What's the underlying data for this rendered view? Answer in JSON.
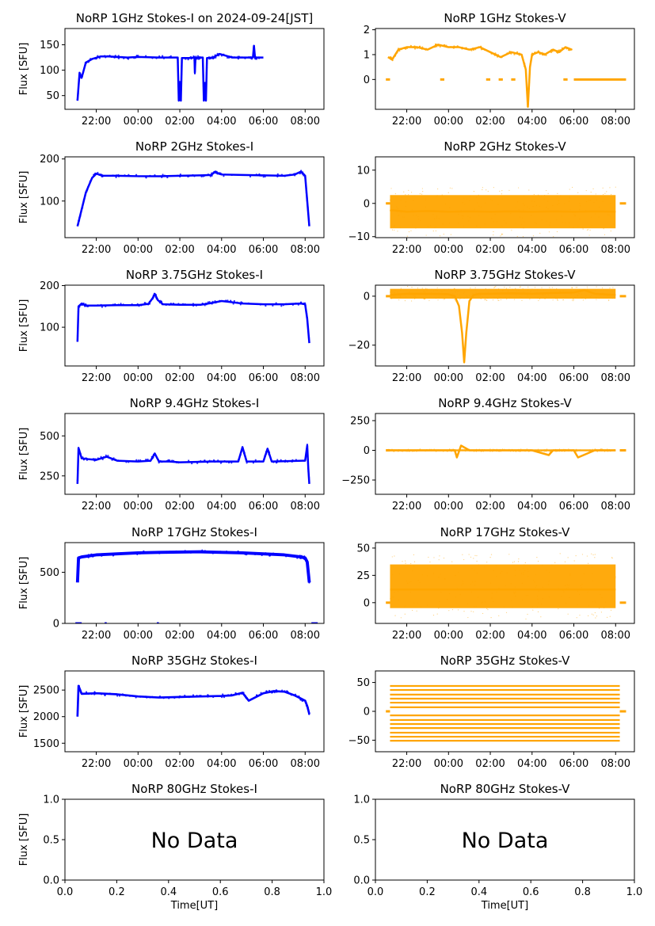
{
  "figure": {
    "title": "NoRP 1GHz Stokes-I on 2024-09-24[JST]",
    "ylabel": "Flux [SFU]",
    "xlabel": "Time[UT]",
    "no_data_text": "No Data",
    "time_ticks": [
      "22:00",
      "00:00",
      "02:00",
      "04:00",
      "06:00",
      "08:00"
    ],
    "colors": {
      "stokes_i": "#0000ff",
      "stokes_v": "#ffa500"
    }
  },
  "chart_data": [
    {
      "type": "scatter",
      "title": "NoRP 1GHz Stokes-I on 2024-09-24[JST]",
      "ylabel": "Flux [SFU]",
      "ylim": [
        23,
        182
      ],
      "yticks": [
        50,
        100,
        150
      ],
      "series": [
        {
          "color": "#0000ff",
          "x": [
            21.1,
            21.2,
            21.3,
            21.5,
            21.8,
            22.2,
            22.6,
            23.0,
            23.5,
            24.0,
            25.0,
            25.9,
            25.95,
            26.0,
            26.05,
            26.1,
            26.5,
            26.7,
            26.72,
            26.75,
            26.9,
            27.1,
            27.15,
            27.2,
            27.25,
            27.3,
            27.6,
            27.9,
            28.5,
            29.0,
            29.5,
            29.55,
            29.6,
            30.0
          ],
          "y": [
            40,
            95,
            85,
            115,
            122,
            127,
            127,
            126,
            125,
            126,
            125,
            125,
            40,
            75,
            40,
            124,
            124,
            125,
            95,
            124,
            125,
            125,
            40,
            75,
            40,
            124,
            125,
            132,
            125,
            125,
            125,
            148,
            125,
            125
          ]
        }
      ]
    },
    {
      "type": "scatter",
      "title": "NoRP 1GHz Stokes-V",
      "ylabel": "",
      "ylim": [
        -1.2,
        2.05
      ],
      "yticks": [
        0,
        1,
        2
      ],
      "series": [
        {
          "color": "#ffa500",
          "x": [
            21.1,
            21.3,
            21.6,
            22.0,
            22.5,
            23.0,
            23.5,
            24.0,
            24.5,
            25.0,
            25.5,
            26.0,
            26.5,
            27.0,
            27.5,
            27.7,
            27.8,
            27.9,
            28.0,
            28.3,
            28.6,
            29.0,
            29.3,
            29.6,
            29.9
          ],
          "y": [
            0.9,
            0.8,
            1.2,
            1.3,
            1.3,
            1.2,
            1.4,
            1.3,
            1.3,
            1.2,
            1.3,
            1.1,
            0.9,
            1.1,
            1.0,
            0.4,
            -1.1,
            0.5,
            1.0,
            1.1,
            1.0,
            1.2,
            1.1,
            1.3,
            1.2
          ],
          "zero_segments": [
            [
              21.0,
              21.2
            ],
            [
              23.6,
              23.8
            ],
            [
              25.8,
              26.0
            ],
            [
              26.4,
              26.6
            ],
            [
              27.0,
              27.2
            ],
            [
              29.5,
              29.7
            ],
            [
              30.0,
              32.5
            ]
          ]
        }
      ]
    },
    {
      "type": "scatter",
      "title": "NoRP 2GHz Stokes-I",
      "ylabel": "Flux [SFU]",
      "ylim": [
        13,
        205
      ],
      "yticks": [
        100,
        200
      ],
      "series": [
        {
          "color": "#0000ff",
          "x": [
            21.1,
            21.2,
            21.5,
            21.8,
            22.0,
            22.3,
            23.0,
            24.0,
            25.0,
            26.0,
            27.0,
            27.5,
            27.7,
            27.8,
            28.0,
            29.0,
            30.0,
            31.0,
            31.5,
            31.8,
            32.0,
            32.1,
            32.2
          ],
          "y": [
            40,
            60,
            120,
            155,
            165,
            160,
            160,
            159,
            159,
            160,
            161,
            162,
            170,
            166,
            163,
            162,
            161,
            160,
            163,
            170,
            160,
            100,
            40
          ]
        }
      ]
    },
    {
      "type": "scatter",
      "title": "NoRP 2GHz Stokes-V",
      "ylabel": "",
      "ylim": [
        -10.3,
        14
      ],
      "yticks": [
        -10,
        0,
        10
      ],
      "series": [
        {
          "color": "#ffa500",
          "x": [
            21.2,
            22.0,
            23.0,
            24.0,
            25.0,
            26.0,
            27.0,
            28.0,
            29.0,
            30.0,
            31.0,
            32.0
          ],
          "y": [
            -2,
            -2.5,
            -2.3,
            -2.5,
            -2.4,
            -2.5,
            -2.4,
            -2.5,
            -2.4,
            -2.5,
            -2.4,
            -2.5
          ],
          "band": [
            -7.5,
            2.5
          ],
          "zero_segments": [
            [
              21.0,
              21.2
            ],
            [
              32.2,
              32.5
            ]
          ]
        }
      ]
    },
    {
      "type": "scatter",
      "title": "NoRP 3.75GHz Stokes-I",
      "ylabel": "Flux [SFU]",
      "ylim": [
        7,
        201
      ],
      "yticks": [
        100,
        200
      ],
      "series": [
        {
          "color": "#0000ff",
          "x": [
            21.1,
            21.15,
            21.3,
            21.5,
            22.0,
            23.0,
            24.0,
            24.5,
            24.7,
            24.8,
            24.95,
            25.2,
            26.0,
            27.0,
            27.5,
            28.0,
            28.5,
            29.0,
            30.0,
            31.0,
            31.8,
            32.0,
            32.1,
            32.2
          ],
          "y": [
            65,
            150,
            157,
            152,
            152,
            153,
            153,
            156,
            170,
            180,
            165,
            155,
            154,
            154,
            158,
            163,
            160,
            157,
            155,
            155,
            157,
            155,
            120,
            62
          ]
        }
      ]
    },
    {
      "type": "scatter",
      "title": "NoRP 3.75GHz Stokes-V",
      "ylabel": "",
      "ylim": [
        -28.5,
        4.5
      ],
      "yticks": [
        -20,
        0
      ],
      "series": [
        {
          "color": "#ffa500",
          "x": [
            21.2,
            22.0,
            23.0,
            24.0,
            24.3,
            24.5,
            24.65,
            24.75,
            24.85,
            25.0,
            25.2,
            25.5,
            26.0,
            27.0,
            28.0,
            29.0,
            30.0,
            30.5,
            31.0,
            32.0
          ],
          "y": [
            0.5,
            1.0,
            1.0,
            0.8,
            0,
            -4,
            -15,
            -27,
            -15,
            -2,
            0.5,
            1.0,
            1.0,
            1.2,
            1.0,
            1.3,
            1.5,
            2.5,
            1.0,
            0.5
          ],
          "band": [
            -1.0,
            3.0
          ],
          "zero_segments": [
            [
              21.0,
              21.2
            ],
            [
              32.2,
              32.5
            ]
          ]
        }
      ]
    },
    {
      "type": "scatter",
      "title": "NoRP 9.4GHz Stokes-I",
      "ylabel": "Flux [SFU]",
      "ylim": [
        135,
        640
      ],
      "yticks": [
        250,
        500
      ],
      "series": [
        {
          "color": "#0000ff",
          "x": [
            21.1,
            21.15,
            21.3,
            21.6,
            22.0,
            22.5,
            23.0,
            24.0,
            24.6,
            24.8,
            25.0,
            25.5,
            26.0,
            27.0,
            27.5,
            28.0,
            28.8,
            29.0,
            29.2,
            30.0,
            30.2,
            30.4,
            31.0,
            32.0,
            32.1,
            32.15,
            32.2
          ],
          "y": [
            200,
            425,
            360,
            355,
            350,
            370,
            345,
            340,
            345,
            390,
            340,
            340,
            335,
            338,
            340,
            340,
            340,
            430,
            340,
            340,
            420,
            340,
            342,
            345,
            440,
            300,
            200
          ]
        }
      ]
    },
    {
      "type": "scatter",
      "title": "NoRP 9.4GHz Stokes-V",
      "ylabel": "",
      "ylim": [
        -370,
        310
      ],
      "yticks": [
        -250,
        0,
        250
      ],
      "series": [
        {
          "color": "#ffa500",
          "x": [
            21.1,
            22.0,
            23.0,
            24.0,
            24.3,
            24.4,
            24.6,
            25.0,
            26.0,
            27.0,
            28.0,
            28.8,
            29.0,
            30.0,
            30.2,
            31.0,
            32.0
          ],
          "y": [
            0,
            0,
            0,
            0,
            0,
            -60,
            40,
            0,
            0,
            0,
            0,
            -40,
            0,
            0,
            -60,
            0,
            0
          ],
          "band": [
            -8,
            8
          ],
          "zero_segments": [
            [
              21.0,
              21.2
            ],
            [
              32.2,
              32.5
            ]
          ]
        }
      ]
    },
    {
      "type": "scatter",
      "title": "NoRP 17GHz Stokes-I",
      "ylabel": "Flux [SFU]",
      "ylim": [
        0,
        790
      ],
      "yticks": [
        0,
        500
      ],
      "series": [
        {
          "color": "#0000ff",
          "x": [
            21.1,
            21.15,
            21.3,
            22.0,
            23.0,
            24.0,
            25.0,
            26.0,
            27.0,
            28.0,
            29.0,
            30.0,
            31.0,
            31.8,
            32.0,
            32.1,
            32.2
          ],
          "y": [
            400,
            640,
            650,
            670,
            680,
            690,
            695,
            698,
            700,
            695,
            690,
            680,
            670,
            650,
            640,
            600,
            400
          ],
          "band_width": 30,
          "zero_segments": [
            [
              21.0,
              21.3
            ],
            [
              22.4,
              22.5
            ],
            [
              24.9,
              25.0
            ],
            [
              32.3,
              32.6
            ]
          ]
        }
      ]
    },
    {
      "type": "scatter",
      "title": "NoRP 17GHz Stokes-V",
      "ylabel": "",
      "ylim": [
        -19,
        55
      ],
      "yticks": [
        0,
        25,
        50
      ],
      "series": [
        {
          "color": "#ffa500",
          "x": [
            21.2,
            22.0,
            23.0,
            24.0,
            25.0,
            26.0,
            27.0,
            28.0,
            29.0,
            30.0,
            31.0,
            32.0
          ],
          "y": [
            12,
            12,
            12,
            12,
            12,
            12,
            12,
            12,
            12,
            12,
            12,
            12
          ],
          "band": [
            -5,
            35
          ],
          "zero_segments": [
            [
              21.0,
              21.2
            ],
            [
              32.2,
              32.5
            ]
          ]
        }
      ]
    },
    {
      "type": "scatter",
      "title": "NoRP 35GHz Stokes-I",
      "ylabel": "Flux [SFU]",
      "ylim": [
        1340,
        2860
      ],
      "yticks": [
        1500,
        2000,
        2500
      ],
      "series": [
        {
          "color": "#0000ff",
          "x": [
            21.1,
            21.15,
            21.3,
            22.0,
            23.0,
            24.0,
            25.0,
            26.0,
            27.0,
            28.0,
            28.5,
            29.0,
            29.3,
            30.0,
            30.5,
            31.0,
            31.5,
            32.0,
            32.1,
            32.2
          ],
          "y": [
            2000,
            2580,
            2430,
            2440,
            2420,
            2380,
            2360,
            2370,
            2380,
            2390,
            2400,
            2450,
            2300,
            2440,
            2480,
            2470,
            2400,
            2300,
            2200,
            2050
          ],
          "band_width": 40
        }
      ]
    },
    {
      "type": "scatter",
      "title": "NoRP 35GHz Stokes-V",
      "ylabel": "",
      "ylim": [
        -70,
        70
      ],
      "yticks": [
        -50,
        0,
        50
      ],
      "series": [
        {
          "color": "#ffa500",
          "x": [
            21.2,
            32.2
          ],
          "levels": [
            -51,
            -44,
            -37,
            -29,
            -22,
            -15,
            -7,
            7,
            15,
            22,
            29,
            37,
            44
          ],
          "zero_segments": [
            [
              21.0,
              21.2
            ],
            [
              32.2,
              32.5
            ]
          ]
        }
      ]
    },
    {
      "type": "scatter",
      "title": "NoRP 80GHz Stokes-I",
      "ylabel": "Flux [SFU]",
      "xlabel": "Time[UT]",
      "xlim": [
        0,
        1
      ],
      "ylim": [
        0,
        1
      ],
      "xticks": [
        "0.0",
        "0.2",
        "0.4",
        "0.6",
        "0.8",
        "1.0"
      ],
      "yticks": [
        "0.0",
        "0.5",
        "1.0"
      ],
      "annotation": "No Data",
      "series": []
    },
    {
      "type": "scatter",
      "title": "NoRP 80GHz Stokes-V",
      "ylabel": "",
      "xlabel": "Time[UT]",
      "xlim": [
        0,
        1
      ],
      "ylim": [
        0,
        1
      ],
      "xticks": [
        "0.0",
        "0.2",
        "0.4",
        "0.6",
        "0.8",
        "1.0"
      ],
      "yticks": [
        "0.0",
        "0.5",
        "1.0"
      ],
      "annotation": "No Data",
      "series": []
    }
  ]
}
